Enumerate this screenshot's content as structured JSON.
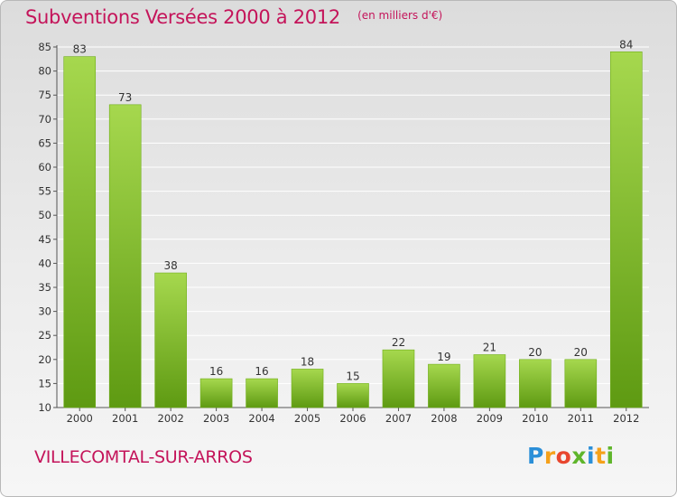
{
  "title": "Subventions Versées 2000 à 2012",
  "unit_note": "(en milliers d'€)",
  "commune": "VILLECOMTAL-SUR-ARROS",
  "logo": {
    "letters": [
      "P",
      "r",
      "o",
      "x",
      "i",
      "t",
      "i"
    ],
    "colors": [
      "#2b8fd8",
      "#f5a11a",
      "#e8462e",
      "#5fb52b",
      "#2b8fd8",
      "#f5a11a",
      "#5fb52b"
    ]
  },
  "colors": {
    "bar_light": "#a6d84e",
    "bar_dark": "#5e9a12",
    "title": "#c4145a",
    "grid": "#ffffff"
  },
  "chart_data": {
    "type": "bar",
    "categories": [
      "2000",
      "2001",
      "2002",
      "2003",
      "2004",
      "2005",
      "2006",
      "2007",
      "2008",
      "2009",
      "2010",
      "2011",
      "2012"
    ],
    "values": [
      83,
      73,
      38,
      16,
      16,
      18,
      15,
      22,
      19,
      21,
      20,
      20,
      84
    ],
    "value_labels": [
      "83",
      "73",
      "38",
      "16",
      "16",
      "18",
      "15",
      "22",
      "19",
      "21",
      "20",
      "20",
      "84"
    ],
    "ylim": [
      10,
      85
    ],
    "yticks": [
      10,
      15,
      20,
      25,
      30,
      35,
      40,
      45,
      50,
      55,
      60,
      65,
      70,
      75,
      80,
      85
    ],
    "grid": true,
    "xlabel": "",
    "ylabel": ""
  }
}
